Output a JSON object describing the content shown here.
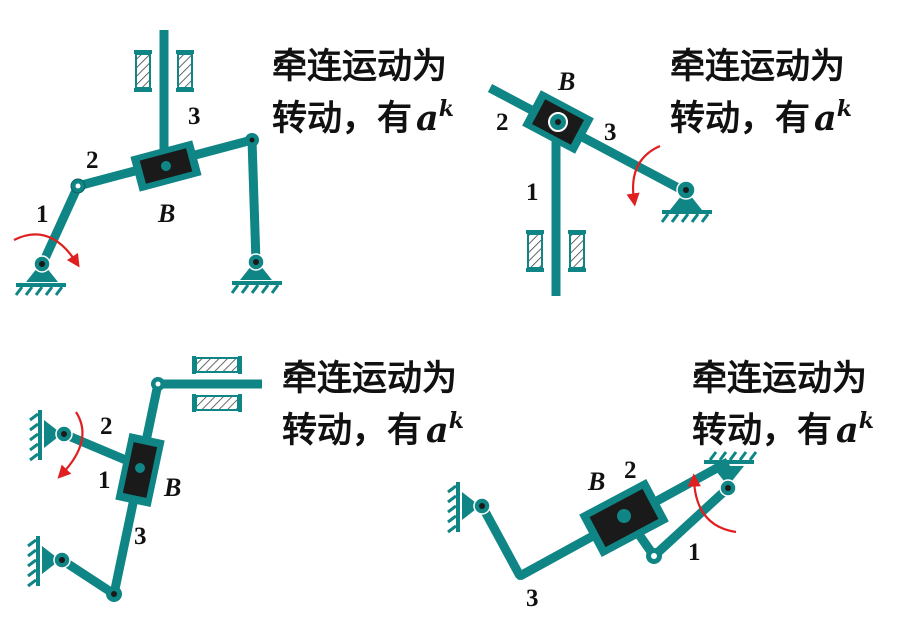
{
  "colors": {
    "link": "#0f8585",
    "slider": "#1a1a1a",
    "arrow": "#e02020",
    "text": "#111111"
  },
  "panels": {
    "top_left": {
      "caption_line1": "牵连运动为",
      "caption_line2": "转动，有",
      "a": "a",
      "k": "k",
      "label1": "1",
      "label2": "2",
      "label3": "3",
      "labelB": "B"
    },
    "top_right": {
      "caption_line1": "牵连运动为",
      "caption_line2": "转动，有",
      "a": "a",
      "k": "k",
      "label1": "1",
      "label2": "2",
      "label3": "3",
      "labelB": "B"
    },
    "bottom_left": {
      "caption_line1": "牵连运动为",
      "caption_line2": "转动，有",
      "a": "a",
      "k": "k",
      "label1": "1",
      "label2": "2",
      "label3": "3",
      "labelB": "B"
    },
    "bottom_right": {
      "caption_line1": "牵连运动为",
      "caption_line2": "转动，有",
      "a": "a",
      "k": "k",
      "label1": "1",
      "label2": "2",
      "label3": "3",
      "labelB": "B"
    }
  }
}
